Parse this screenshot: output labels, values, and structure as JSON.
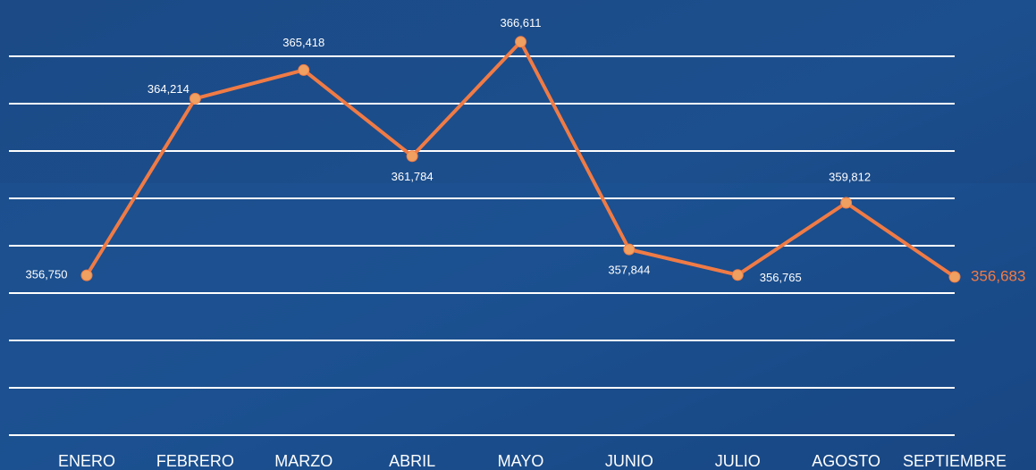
{
  "chart_data": {
    "type": "line",
    "categories": [
      "ENERO",
      "FEBRERO",
      "MARZO",
      "ABRIL",
      "MAYO",
      "JUNIO",
      "JULIO",
      "AGOSTO",
      "SEPTIEMBRE"
    ],
    "values": [
      356750,
      364214,
      365418,
      361784,
      366611,
      357844,
      356765,
      359812,
      356683
    ],
    "value_labels": [
      "356,750",
      "364,214",
      "365,418",
      "361,784",
      "366,611",
      "357,844",
      "356,765",
      "359,812",
      "356,683"
    ],
    "color": "#f07b45",
    "ylim": [
      350000,
      366000
    ],
    "yticks": [
      350000,
      352000,
      354000,
      356000,
      358000,
      360000,
      362000,
      364000,
      366000
    ],
    "grid": true
  }
}
